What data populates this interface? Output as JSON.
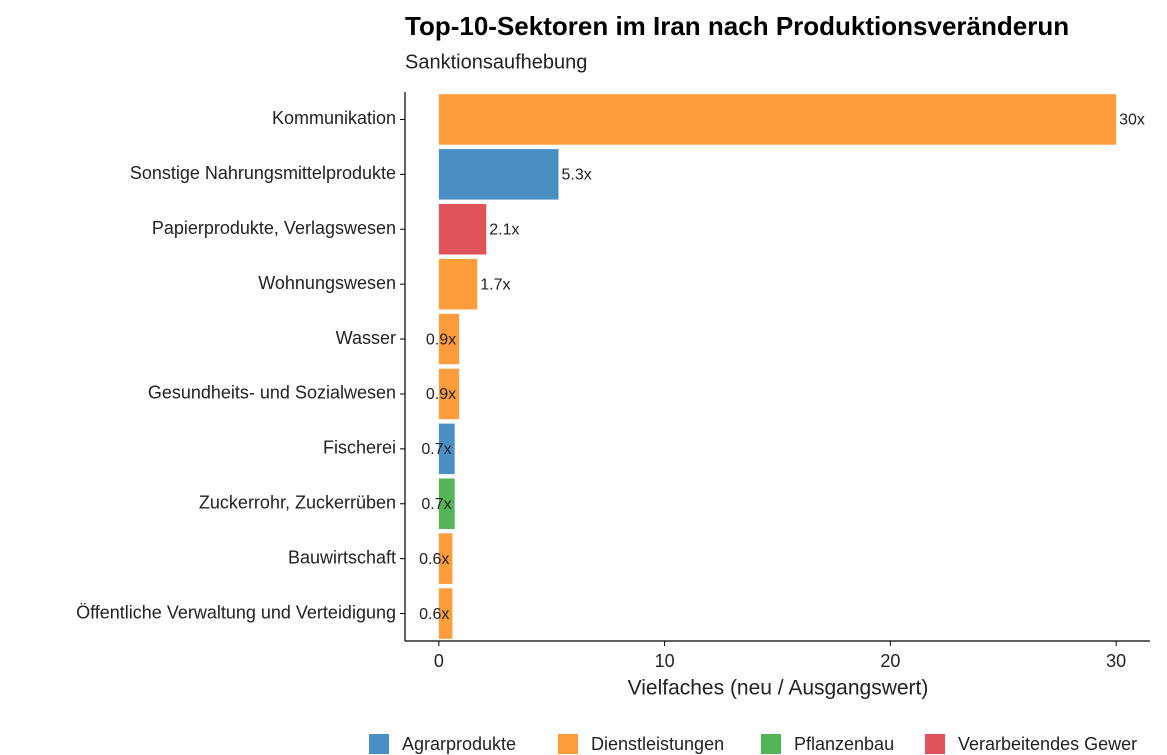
{
  "chart_data": {
    "type": "bar",
    "orientation": "horizontal",
    "title": "Top-10-Sektoren im Iran nach Produktionsveränderun",
    "subtitle": "Sanktionsaufhebung",
    "xlabel": "Vielfaches (neu / Ausgangswert)",
    "categories": [
      "Kommunikation",
      "Sonstige Nahrungsmittelprodukte",
      "Papierprodukte, Verlagswesen",
      "Wohnungswesen",
      "Wasser",
      "Gesundheits- und Sozialwesen",
      "Fischerei",
      "Zuckerrohr, Zuckerrüben",
      "Bauwirtschaft",
      "Öffentliche Verwaltung und Verteidigung"
    ],
    "values": [
      30,
      5.3,
      2.1,
      1.7,
      0.9,
      0.9,
      0.7,
      0.7,
      0.6,
      0.6
    ],
    "value_labels": [
      "30x",
      "5.3x",
      "2.1x",
      "1.7x",
      "0.9x",
      "0.9x",
      "0.7x",
      "0.7x",
      "0.6x",
      "0.6x"
    ],
    "colors": [
      "#ff9c3b",
      "#4a8fc4",
      "#e0535a",
      "#ff9c3b",
      "#ff9c3b",
      "#ff9c3b",
      "#4a8fc4",
      "#54b458",
      "#ff9c3b",
      "#ff9c3b"
    ],
    "legend": [
      {
        "name": "Agrarprodukte",
        "color": "#4a8fc4"
      },
      {
        "name": "Dienstleistungen",
        "color": "#ff9c3b"
      },
      {
        "name": "Pflanzenbau",
        "color": "#54b458"
      },
      {
        "name": "Verarbeitendes Gewer",
        "color": "#e0535a"
      }
    ],
    "xlim": [
      -1.5,
      31.5
    ],
    "xticks": [
      0,
      10,
      20,
      30
    ],
    "grid": false
  }
}
